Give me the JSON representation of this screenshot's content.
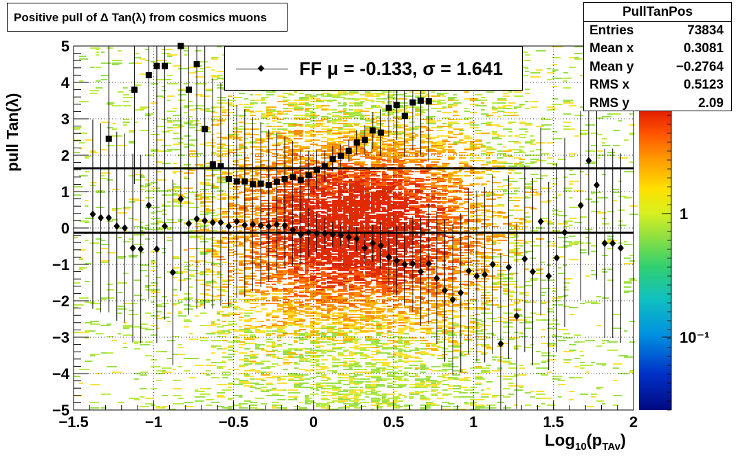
{
  "title": "Positive pull of Δ Tan(λ) from cosmics muons",
  "stats": {
    "name": "PullTanPos",
    "rows": [
      {
        "label": "Entries",
        "value": "73834"
      },
      {
        "label": "Mean x",
        "value": "0.3081"
      },
      {
        "label": "Mean y",
        "value": "−0.2764"
      },
      {
        "label": "RMS x",
        "value": "0.5123"
      },
      {
        "label": "RMS y",
        "value": "2.09"
      }
    ]
  },
  "legend": {
    "text": "FF μ = -0.133, σ =   1.641"
  },
  "axes": {
    "ylabel": "pull Tan(λ)",
    "xlabel_main": "Log",
    "xlabel_sub": "10",
    "xlabel_arg": "(p",
    "xlabel_arg_sub": "TAv",
    "xlabel_close": ")"
  },
  "colors": {
    "marker": "#000000",
    "frame": "#000000"
  },
  "chart_data": {
    "type": "scatter",
    "xlim": [
      -1.5,
      2
    ],
    "ylim": [
      -5,
      5
    ],
    "x_ticks": [
      -1.5,
      -1,
      -0.5,
      0,
      0.5,
      1,
      1.5,
      2
    ],
    "x_tick_labels": [
      "−1.5",
      "−1",
      "−0.5",
      "0",
      "0.5",
      "1",
      "1.5",
      "2"
    ],
    "y_ticks": [
      -5,
      -4,
      -3,
      -2,
      -1,
      0,
      1,
      2,
      3,
      4,
      5
    ],
    "y_tick_labels": [
      "−5",
      "−4",
      "−3",
      "−2",
      "−1",
      "0",
      "1",
      "2",
      "3",
      "4",
      "5"
    ],
    "grid": true,
    "colorbar": {
      "scale": "log",
      "labels": [
        "1",
        "10⁻¹"
      ],
      "label_values": [
        1,
        0.1
      ]
    },
    "hlines": [
      {
        "name": "mean",
        "y": -0.133
      },
      {
        "name": "sigma",
        "y": 1.641
      }
    ],
    "series": [
      {
        "marker": "square",
        "x": [
          -1.28,
          -1.12,
          -1.03,
          -0.98,
          -0.93,
          -0.83,
          -0.78,
          -0.73,
          -0.68,
          -0.63,
          -0.58,
          -0.53,
          -0.48,
          -0.43,
          -0.38,
          -0.33,
          -0.28,
          -0.23,
          -0.18,
          -0.13,
          -0.08,
          -0.03,
          0.02,
          0.07,
          0.12,
          0.17,
          0.22,
          0.27,
          0.32,
          0.37,
          0.42,
          0.47,
          0.52,
          0.57,
          0.62,
          0.67,
          0.72
        ],
        "y": [
          2.45,
          3.8,
          4.2,
          4.45,
          4.45,
          5.0,
          3.8,
          4.5,
          2.72,
          1.75,
          1.7,
          1.35,
          1.28,
          1.28,
          1.2,
          1.22,
          1.18,
          1.27,
          1.35,
          1.4,
          1.32,
          1.45,
          1.6,
          1.7,
          1.9,
          1.98,
          2.12,
          2.35,
          2.42,
          2.68,
          2.62,
          3.3,
          3.38,
          3.08,
          3.45,
          3.5,
          3.48
        ]
      },
      {
        "marker": "diamond",
        "x": [
          -1.38,
          -1.33,
          -1.28,
          -1.23,
          -1.18,
          -1.13,
          -1.08,
          -1.03,
          -0.98,
          -0.93,
          -0.88,
          -0.83,
          -0.78,
          -0.73,
          -0.68,
          -0.63,
          -0.58,
          -0.53,
          -0.48,
          -0.43,
          -0.38,
          -0.33,
          -0.28,
          -0.23,
          -0.18,
          -0.13,
          -0.08,
          -0.03,
          0.02,
          0.07,
          0.12,
          0.17,
          0.22,
          0.27,
          0.32,
          0.37,
          0.42,
          0.47,
          0.52,
          0.57,
          0.62,
          0.67,
          0.72,
          0.77,
          0.82,
          0.87,
          0.92,
          0.97,
          1.02,
          1.07,
          1.12,
          1.17,
          1.22,
          1.27,
          1.32,
          1.37,
          1.42,
          1.47,
          1.52,
          1.57,
          1.67,
          1.72,
          1.77,
          1.82,
          1.87,
          1.92
        ],
        "y": [
          0.38,
          0.28,
          0.28,
          0.05,
          0.0,
          -0.55,
          -0.58,
          0.62,
          -0.58,
          0.05,
          -1.22,
          0.8,
          0.12,
          0.25,
          0.2,
          0.15,
          0.15,
          0.05,
          0.18,
          0.08,
          0.1,
          0.07,
          0.05,
          0.1,
          0.07,
          -0.05,
          -0.18,
          -0.12,
          -0.15,
          -0.15,
          -0.18,
          -0.2,
          -0.25,
          -0.3,
          -0.55,
          -0.42,
          -0.48,
          -0.8,
          -0.9,
          -1.0,
          -0.98,
          -1.2,
          -0.98,
          -1.38,
          -1.72,
          -1.97,
          -1.78,
          -1.18,
          -1.32,
          -1.28,
          -1.0,
          -3.18,
          -1.08,
          -2.42,
          -0.85,
          -1.2,
          0.18,
          -1.32,
          -0.82,
          -0.12,
          0.62,
          1.85,
          1.18,
          -0.42,
          -0.42,
          -0.55
        ]
      }
    ]
  }
}
